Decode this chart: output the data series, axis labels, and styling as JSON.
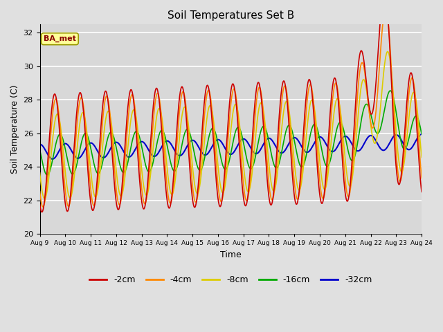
{
  "title": "Soil Temperatures Set B",
  "xlabel": "Time",
  "ylabel": "Soil Temperature (C)",
  "ylim": [
    20,
    32.5
  ],
  "yticks": [
    20,
    22,
    24,
    26,
    28,
    30,
    32
  ],
  "xtick_days": [
    9,
    10,
    11,
    12,
    13,
    14,
    15,
    16,
    17,
    18,
    19,
    20,
    21,
    22,
    23,
    24
  ],
  "legend_labels": [
    "-2cm",
    "-4cm",
    "-8cm",
    "-16cm",
    "-32cm"
  ],
  "legend_colors": [
    "#cc0000",
    "#ff8800",
    "#ddcc00",
    "#00aa00",
    "#0000cc"
  ],
  "annotation_text": "BA_met",
  "annotation_box_color": "#ffff99",
  "annotation_text_color": "#880000",
  "bg_color": "#e0e0e0",
  "plot_bg_color": "#d8d8d8",
  "grid_color": "#ffffff",
  "line_widths": [
    1.2,
    1.2,
    1.2,
    1.2,
    1.5
  ]
}
